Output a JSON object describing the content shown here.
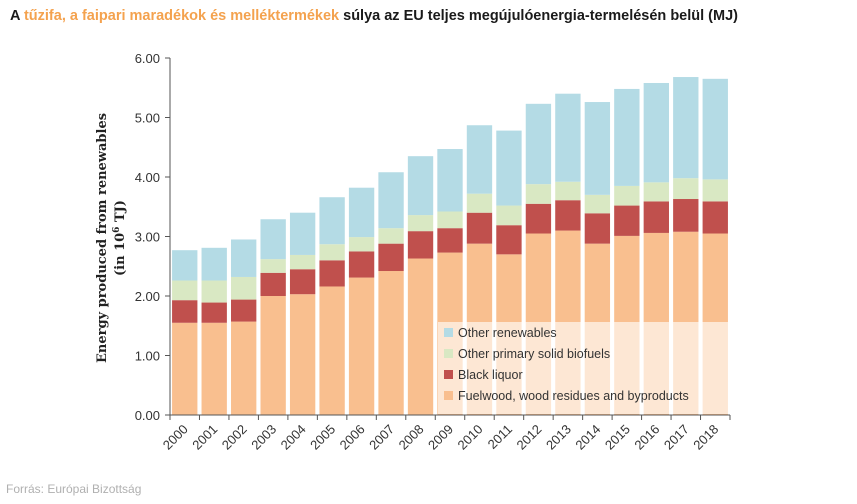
{
  "title": {
    "prefix": "A ",
    "highlight": "tűzifa, a faipari maradékok és melléktermékek",
    "suffix": " súlya az EU teljes megújulóenergia-termelésén belül (MJ)"
  },
  "source": "Forrás: Európai Bizottság",
  "colors": {
    "fuelwood": "#f9bf8f",
    "black_liquor": "#c0504d",
    "other_solid": "#d9e8c3",
    "other_renewables": "#b4dbe5",
    "title_highlight": "#f4a24e"
  },
  "chart_data": {
    "type": "bar",
    "stacked": true,
    "ylabel_line1": "Energy produced from renewables",
    "ylabel_line2": "(in 10",
    "ylabel_sup": "6",
    "ylabel_end": " TJ)",
    "ylim": [
      0,
      6
    ],
    "yticks": [
      "0.00",
      "1.00",
      "2.00",
      "3.00",
      "4.00",
      "5.00",
      "6.00"
    ],
    "grid": false,
    "legend_position": "bottom-right",
    "categories": [
      "2000",
      "2001",
      "2002",
      "2003",
      "2004",
      "2005",
      "2006",
      "2007",
      "2008",
      "2009",
      "2010",
      "2011",
      "2012",
      "2013",
      "2014",
      "2015",
      "2016",
      "2017",
      "2018"
    ],
    "series": [
      {
        "name": "Fuelwood, wood residues and byproducts",
        "key": "fuelwood",
        "values": [
          1.55,
          1.55,
          1.57,
          2.0,
          2.03,
          2.16,
          2.31,
          2.42,
          2.63,
          2.73,
          2.88,
          2.7,
          3.05,
          3.1,
          2.88,
          3.01,
          3.06,
          3.08,
          3.05
        ]
      },
      {
        "name": "Black liquor",
        "key": "black_liquor",
        "values": [
          0.38,
          0.34,
          0.37,
          0.39,
          0.42,
          0.44,
          0.44,
          0.46,
          0.46,
          0.41,
          0.52,
          0.49,
          0.5,
          0.51,
          0.51,
          0.51,
          0.53,
          0.55,
          0.54
        ]
      },
      {
        "name": "Other primary solid biofuels",
        "key": "other_solid",
        "values": [
          0.33,
          0.37,
          0.38,
          0.23,
          0.24,
          0.27,
          0.24,
          0.26,
          0.27,
          0.28,
          0.32,
          0.33,
          0.33,
          0.31,
          0.31,
          0.33,
          0.32,
          0.35,
          0.37
        ]
      },
      {
        "name": "Other renewables",
        "key": "other_renewables",
        "values": [
          0.51,
          0.55,
          0.63,
          0.67,
          0.71,
          0.79,
          0.83,
          0.94,
          0.99,
          1.05,
          1.15,
          1.26,
          1.35,
          1.48,
          1.56,
          1.63,
          1.67,
          1.7,
          1.69
        ]
      }
    ],
    "legend_order": [
      "other_renewables",
      "other_solid",
      "black_liquor",
      "fuelwood"
    ]
  }
}
